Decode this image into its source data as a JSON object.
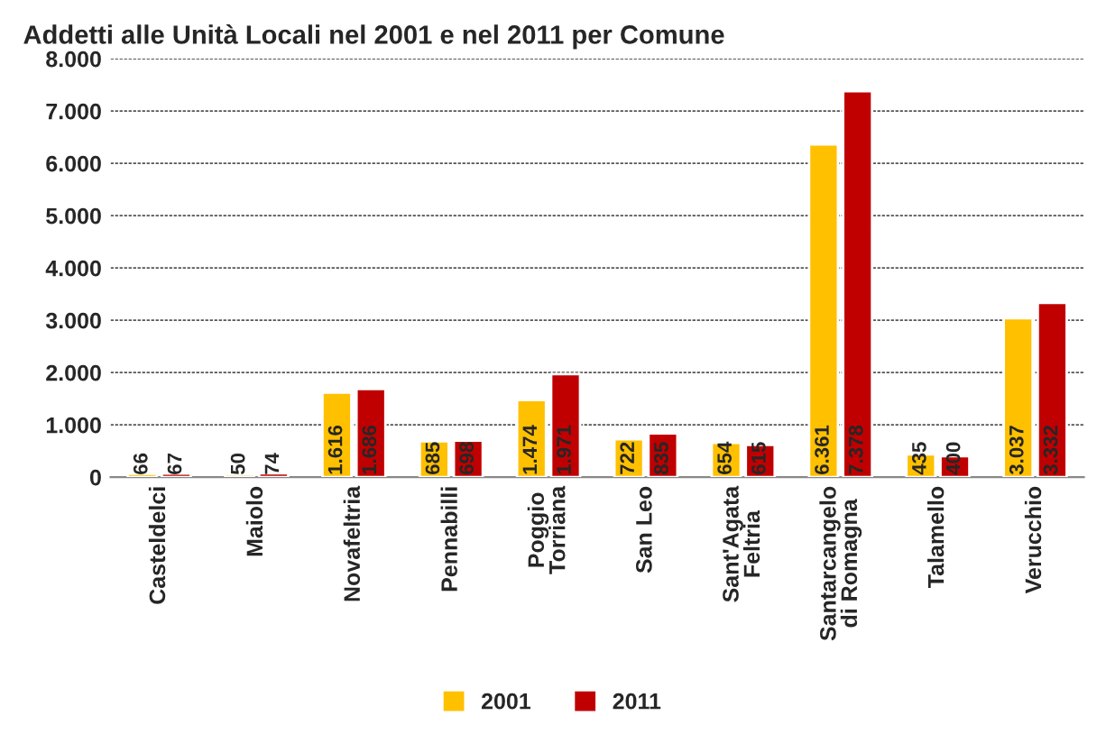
{
  "chart_data": {
    "type": "bar",
    "title": "Addetti alle Unità Locali nel 2001 e nel 2011 per Comune",
    "categories": [
      "Casteldelci",
      "Maiolo",
      "Novafeltria",
      "Pennabilli",
      "Poggio\nTorriana",
      "San Leo",
      "Sant'Agata\nFeltria",
      "Santarcangelo\ndi Romagna",
      "Talamello",
      "Verucchio"
    ],
    "series": [
      {
        "name": "2001",
        "color": "#ffc000",
        "values": [
          66,
          50,
          1616,
          685,
          1474,
          722,
          654,
          6361,
          435,
          3037
        ],
        "value_labels": [
          "66",
          "50",
          "1.616",
          "685",
          "1.474",
          "722",
          "654",
          "6.361",
          "435",
          "3.037"
        ]
      },
      {
        "name": "2011",
        "color": "#c00000",
        "values": [
          67,
          74,
          1686,
          698,
          1971,
          835,
          615,
          7378,
          400,
          3332
        ],
        "value_labels": [
          "67",
          "74",
          "1.686",
          "698",
          "1.971",
          "835",
          "615",
          "7.378",
          "400",
          "3.332"
        ]
      }
    ],
    "ylim": [
      0,
      8000
    ],
    "yticks": [
      {
        "value": 0,
        "label": "0"
      },
      {
        "value": 1000,
        "label": "1.000"
      },
      {
        "value": 2000,
        "label": "2.000"
      },
      {
        "value": 3000,
        "label": "3.000"
      },
      {
        "value": 4000,
        "label": "4.000"
      },
      {
        "value": 5000,
        "label": "5.000"
      },
      {
        "value": 6000,
        "label": "6.000"
      },
      {
        "value": 7000,
        "label": "7.000"
      },
      {
        "value": 8000,
        "label": "8.000"
      }
    ],
    "grid": "y",
    "legend": "bottom"
  }
}
